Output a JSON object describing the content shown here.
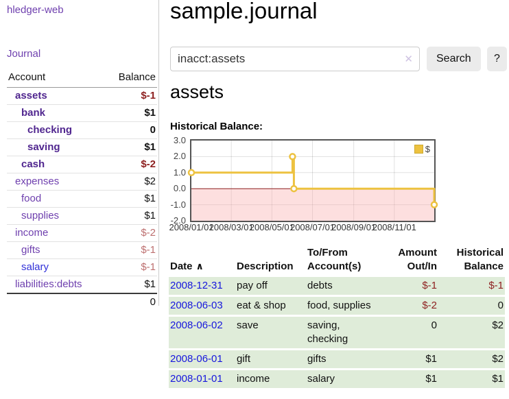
{
  "app": {
    "title": "hledger-web",
    "nav_journal": "Journal"
  },
  "icons": {
    "clear": "✕",
    "sort_asc": "∧",
    "help": "?"
  },
  "colors": {
    "link_purple": "#6e3fae",
    "link_purple_strong": "#50268f",
    "link_blue": "#1717dd",
    "negative": "#8d1f1f",
    "negative_dim": "#bd6f6f",
    "row_green": "#dfecd9",
    "series_gold": "#edc240",
    "zero_line": "#8b1f1f",
    "negative_fill": "#f8dcdc"
  },
  "sidebar": {
    "accounts_header": {
      "account": "Account",
      "balance": "Balance"
    },
    "accounts": [
      {
        "name": "assets",
        "depth": 1,
        "balance": "$-1",
        "strong": true,
        "balance_class": "neg"
      },
      {
        "name": "bank",
        "depth": 2,
        "balance": "$1",
        "strong": true,
        "balance_class": ""
      },
      {
        "name": "checking",
        "depth": 3,
        "balance": "0",
        "strong": true,
        "balance_class": ""
      },
      {
        "name": "saving",
        "depth": 3,
        "balance": "$1",
        "strong": true,
        "balance_class": ""
      },
      {
        "name": "cash",
        "depth": 2,
        "balance": "$-2",
        "strong": true,
        "balance_class": "neg"
      },
      {
        "name": "expenses",
        "depth": 1,
        "balance": "$2",
        "strong": false,
        "balance_class": ""
      },
      {
        "name": "food",
        "depth": 2,
        "balance": "$1",
        "strong": false,
        "balance_class": ""
      },
      {
        "name": "supplies",
        "depth": 2,
        "balance": "$1",
        "strong": false,
        "balance_class": ""
      },
      {
        "name": "income",
        "depth": 1,
        "balance": "$-2",
        "strong": false,
        "balance_class": "dimneg"
      },
      {
        "name": "gifts",
        "depth": 2,
        "balance": "$-1",
        "strong": false,
        "balance_class": "dimneg"
      },
      {
        "name": "salary",
        "depth": 2,
        "balance": "$-1",
        "strong": false,
        "balance_class": "dimneg",
        "blue": true
      },
      {
        "name": "liabilities:debts",
        "depth": 1,
        "balance": "$1",
        "strong": false,
        "balance_class": ""
      }
    ],
    "total": "0"
  },
  "header": {
    "title": "sample.journal"
  },
  "search": {
    "value": "inacct:assets",
    "button": "Search",
    "help_button": "?"
  },
  "account_page": {
    "heading": "assets",
    "chart_label": "Historical Balance:"
  },
  "chart_data": {
    "type": "line",
    "step": true,
    "title": "Historical Balance:",
    "series": [
      {
        "name": "$",
        "color": "#edc240",
        "points": [
          [
            "2008-01-01",
            1
          ],
          [
            "2008-06-01",
            2
          ],
          [
            "2008-06-03",
            0
          ],
          [
            "2008-12-31",
            -1
          ]
        ]
      }
    ],
    "xlim": [
      "2008-01-01",
      "2008-12-31"
    ],
    "ylim": [
      -2,
      3
    ],
    "ytick_values": [
      3,
      2,
      1,
      0,
      -1,
      -2
    ],
    "ytick_labels": [
      "3.0",
      "2.0",
      "1.0",
      "0.0",
      "-1.0",
      "-2.0"
    ],
    "xtick_dates": [
      "2008-01-01",
      "2008-03-01",
      "2008-05-01",
      "2008-07-01",
      "2008-09-01",
      "2008-11-01"
    ],
    "xtick_labels": [
      "2008/01/01",
      "2008/03/01",
      "2008/05/01",
      "2008/07/01",
      "2008/09/01",
      "2008/11/01"
    ],
    "legend_position": "top-right",
    "grid": true,
    "negative_region_color": "rgba(250,170,170,0.38)",
    "zero_line_color": "#8b1f1f"
  },
  "register": {
    "headers": [
      "Date",
      "Description",
      "To/From Account(s)",
      "Amount Out/In",
      "Historical Balance"
    ],
    "rows": [
      {
        "date": "2008-12-31",
        "description": "pay off",
        "accounts": "debts",
        "amount": "$-1",
        "amount_class": "neg",
        "balance": "$-1",
        "balance_class": "neg"
      },
      {
        "date": "2008-06-03",
        "description": "eat & shop",
        "accounts": "food, supplies",
        "amount": "$-2",
        "amount_class": "neg",
        "balance": "0",
        "balance_class": ""
      },
      {
        "date": "2008-06-02",
        "description": "save",
        "accounts": "saving, checking",
        "amount": "0",
        "amount_class": "",
        "balance": "$2",
        "balance_class": ""
      },
      {
        "date": "2008-06-01",
        "description": "gift",
        "accounts": "gifts",
        "amount": "$1",
        "amount_class": "",
        "balance": "$2",
        "balance_class": ""
      },
      {
        "date": "2008-01-01",
        "description": "income",
        "accounts": "salary",
        "amount": "$1",
        "amount_class": "",
        "balance": "$1",
        "balance_class": ""
      }
    ]
  }
}
